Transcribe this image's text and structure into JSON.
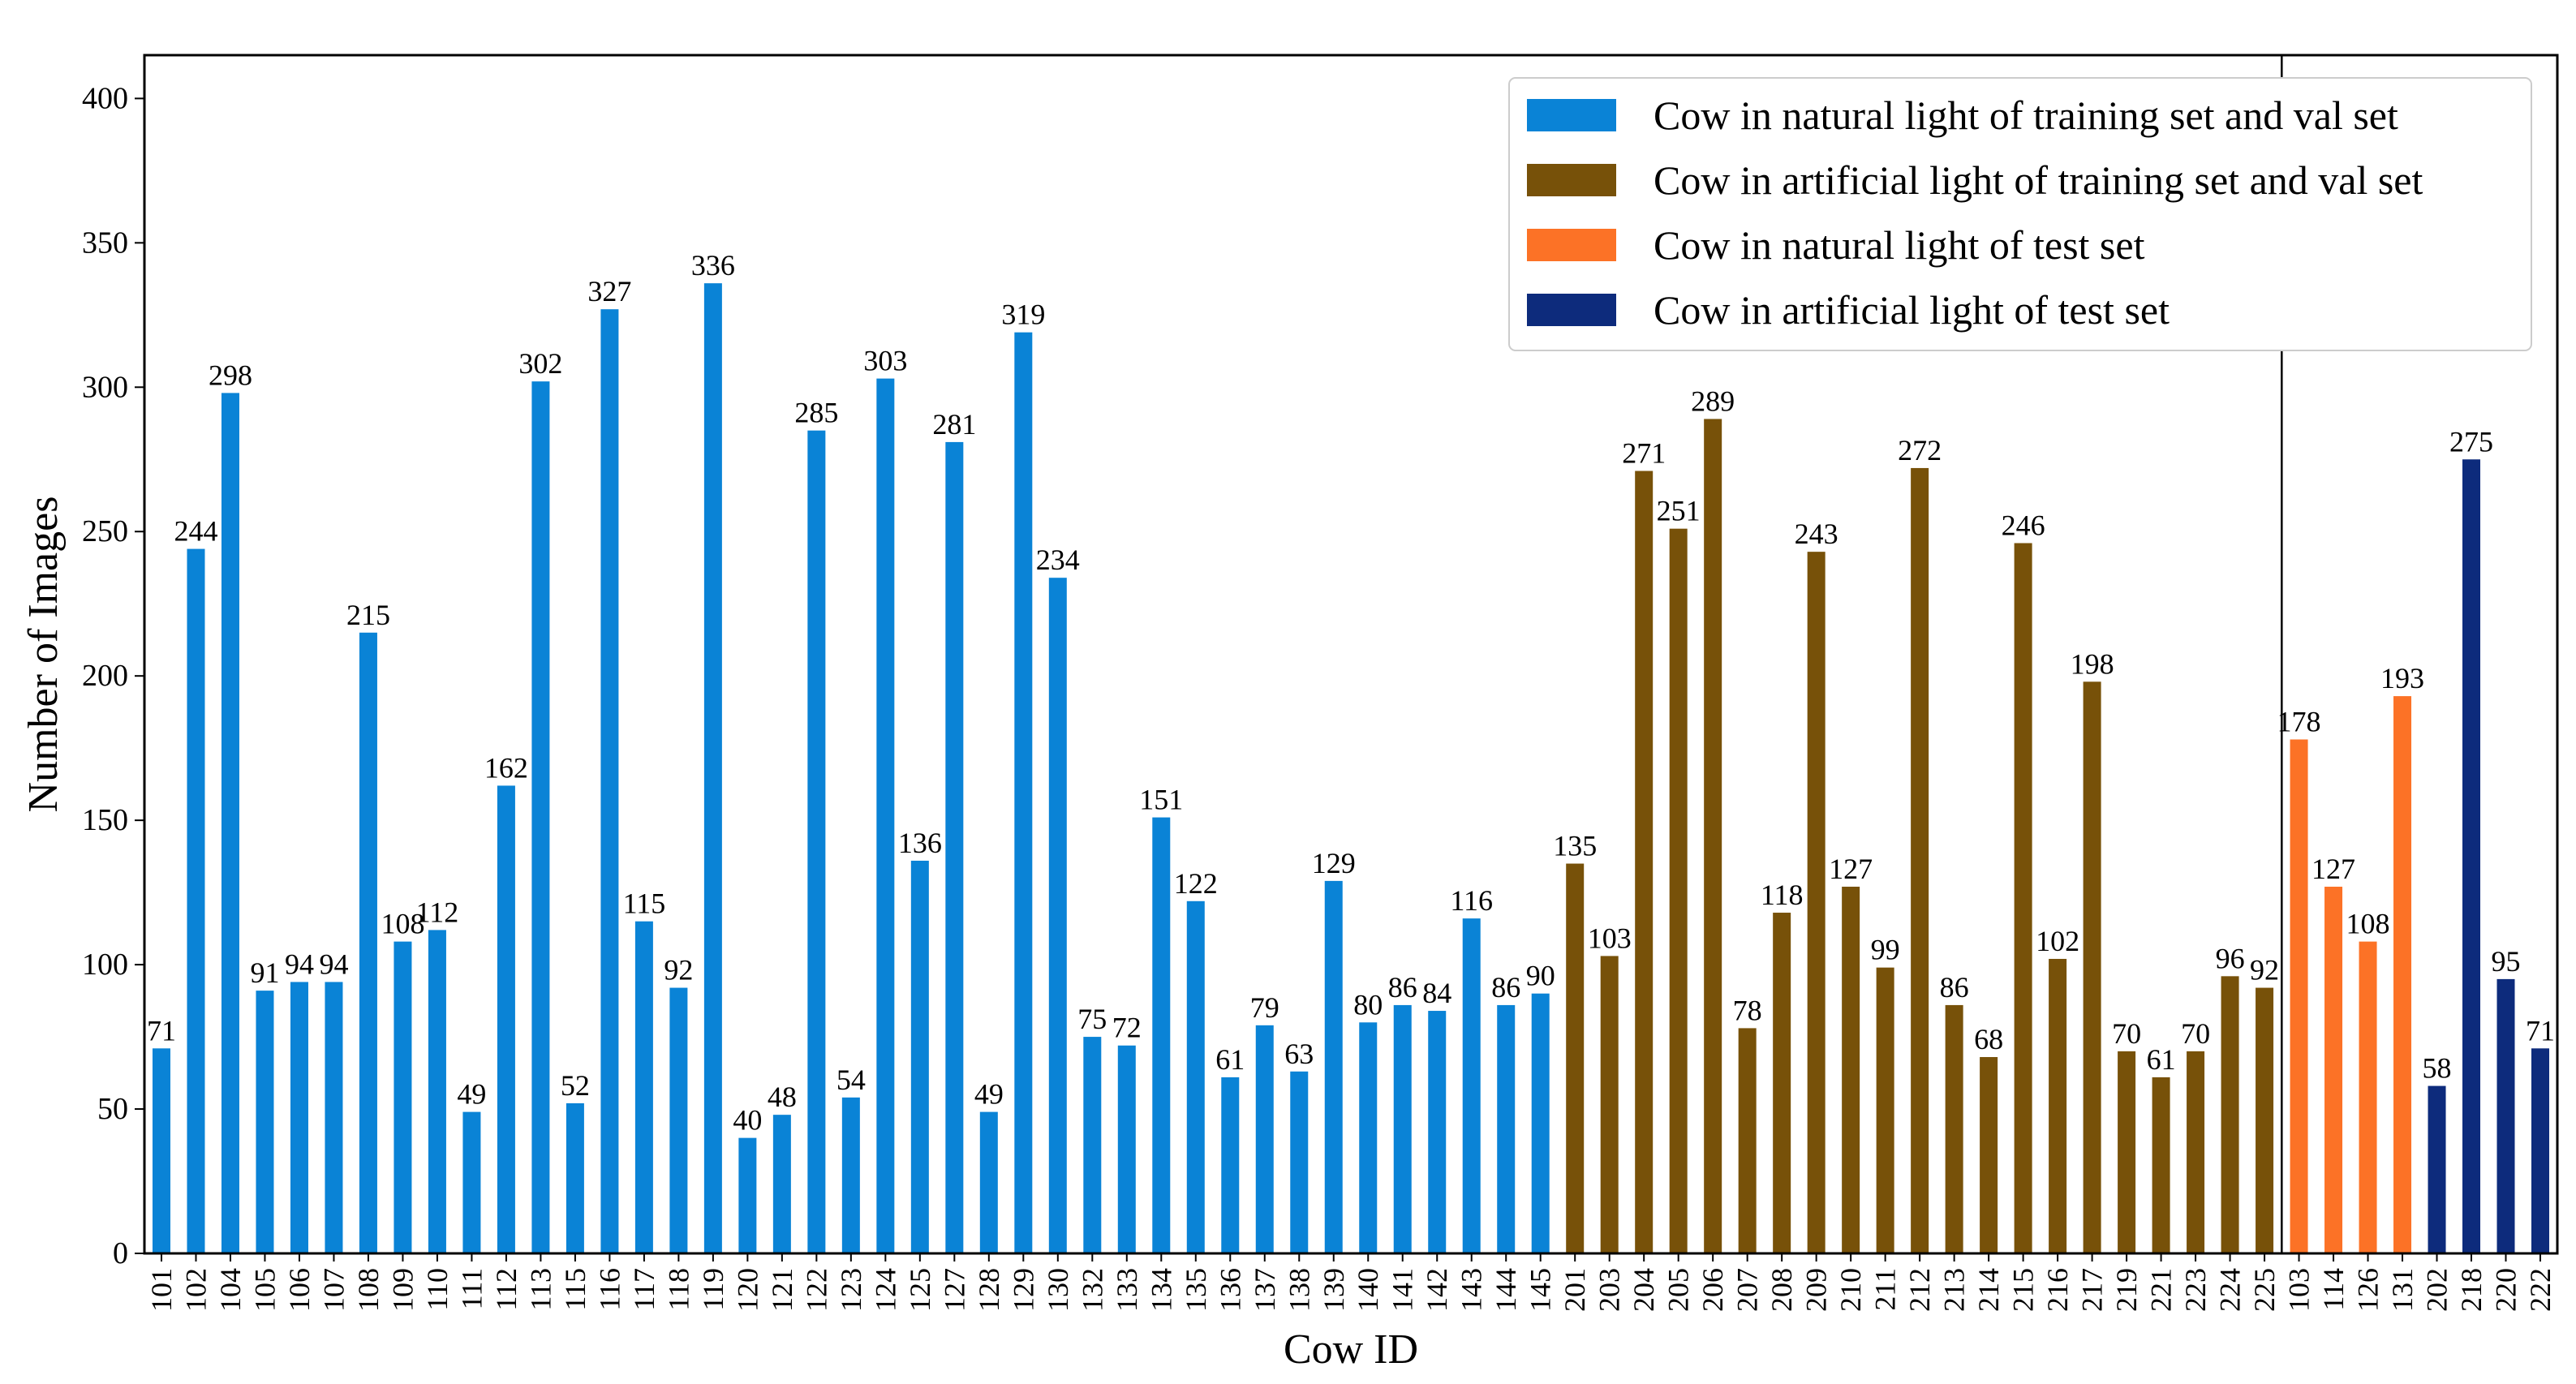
{
  "chart_data": {
    "type": "bar",
    "title": "",
    "xlabel": "Cow ID",
    "ylabel": "Number of Images",
    "ylim": [
      0,
      415
    ],
    "yticks": [
      0,
      50,
      100,
      150,
      200,
      250,
      300,
      350,
      400
    ],
    "grid": false,
    "legend_position": "top-right",
    "colors": {
      "natural_trainval": "#0a83d6",
      "artificial_trainval": "#775109",
      "natural_test": "#fc7226",
      "artificial_test": "#0d2b7c"
    },
    "series": [
      {
        "name": "Cow in natural light of training set and val set",
        "color_key": "natural_trainval",
        "categories": [
          "101",
          "102",
          "104",
          "105",
          "106",
          "107",
          "108",
          "109",
          "110",
          "111",
          "112",
          "113",
          "115",
          "116",
          "117",
          "118",
          "119",
          "120",
          "121",
          "122",
          "123",
          "124",
          "125",
          "127",
          "128",
          "129",
          "130",
          "132",
          "133",
          "134",
          "135",
          "136",
          "137",
          "138",
          "139",
          "140",
          "141",
          "142",
          "143",
          "144",
          "145"
        ],
        "values": [
          71,
          244,
          298,
          91,
          94,
          94,
          215,
          108,
          112,
          49,
          162,
          302,
          52,
          327,
          115,
          92,
          336,
          40,
          48,
          285,
          54,
          303,
          136,
          281,
          49,
          319,
          234,
          75,
          72,
          151,
          122,
          61,
          79,
          63,
          129,
          80,
          86,
          84,
          116,
          86,
          90
        ]
      },
      {
        "name": "Cow in artificial light of training set and val set",
        "color_key": "artificial_trainval",
        "categories": [
          "201",
          "203",
          "204",
          "205",
          "206",
          "207",
          "208",
          "209",
          "210",
          "211",
          "212",
          "213",
          "214",
          "215",
          "216",
          "217",
          "219",
          "221",
          "223",
          "224",
          "225"
        ],
        "values": [
          135,
          103,
          271,
          251,
          289,
          78,
          118,
          243,
          127,
          99,
          272,
          86,
          68,
          246,
          102,
          198,
          70,
          61,
          70,
          96,
          92
        ]
      },
      {
        "name": "Cow in natural light of test set",
        "color_key": "natural_test",
        "categories": [
          "103",
          "114",
          "126",
          "131"
        ],
        "values": [
          178,
          127,
          108,
          193
        ]
      },
      {
        "name": "Cow in artificial light of test set",
        "color_key": "artificial_test",
        "categories": [
          "202",
          "218",
          "220",
          "222"
        ],
        "values": [
          58,
          275,
          95,
          71
        ]
      }
    ]
  }
}
